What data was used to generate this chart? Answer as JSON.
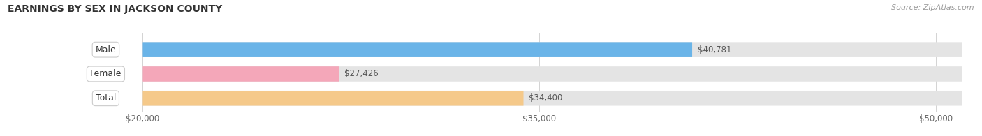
{
  "title": "EARNINGS BY SEX IN JACKSON COUNTY",
  "source": "Source: ZipAtlas.com",
  "categories": [
    "Male",
    "Female",
    "Total"
  ],
  "values": [
    40781,
    27426,
    34400
  ],
  "value_labels": [
    "$40,781",
    "$27,426",
    "$34,400"
  ],
  "bar_colors": [
    "#6ab4e8",
    "#f4a7b9",
    "#f5c98a"
  ],
  "bar_bg_color": "#e4e4e4",
  "xlim_min": 20000,
  "xlim_max": 51000,
  "xticks": [
    20000,
    35000,
    50000
  ],
  "xtick_labels": [
    "$20,000",
    "$35,000",
    "$50,000"
  ],
  "title_fontsize": 10,
  "source_fontsize": 8,
  "label_fontsize": 9,
  "value_fontsize": 8.5,
  "bg_color": "#ffffff",
  "bar_height": 0.62
}
